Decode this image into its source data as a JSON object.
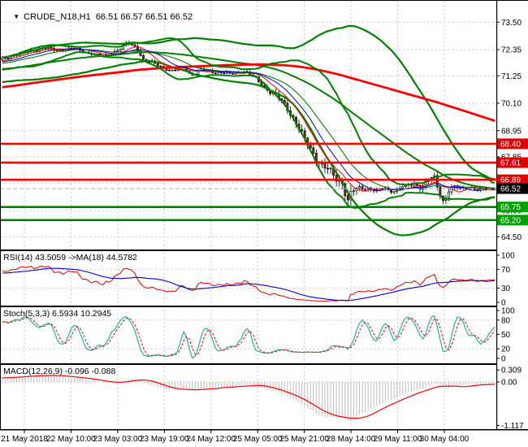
{
  "window": {
    "dropdown_icon": "▼",
    "title_symbol": "CRUDE_N18,H1",
    "title_ohlc": "66.51 66.57 66.51 66.52"
  },
  "colors": {
    "background": "#FFFFFF",
    "grid": "#C9C9C9",
    "bull_candle": "#FFFFFF",
    "bear_candle": "#9C231F",
    "wick": "#000000",
    "bollinger_green": "#008000",
    "ma_thin_red": "#FF0000",
    "ma_thin_blue": "#0000CC",
    "ma_thick_red": "#FF0000",
    "resistance_line": "#FF0000",
    "support_line": "#008000",
    "resistance_badge": "#DD0000",
    "support_badge": "#00A000",
    "last_price_badge": "#000000",
    "badge_text": "#FFFFFF",
    "rsi_line": "#E00000",
    "rsi_ma_line": "#0000CC",
    "stoch_k_line": "#20B2AA",
    "stoch_d_line": "#FF0000",
    "macd_histogram": "#BDBDBD",
    "macd_signal": "#FF0000",
    "last_price_line": "#B0B0B0",
    "axis_text": "#000000"
  },
  "chart_data": {
    "type": "candlestick",
    "symbol": "CRUDE_N18,H1",
    "timeframe": "H1",
    "ohlc_readout": {
      "open": 66.51,
      "high": 66.57,
      "low": 66.51,
      "close": 66.52
    },
    "price_axis_ticks": [
      "73.50",
      "72.35",
      "71.25",
      "70.10",
      "68.95",
      "67.85",
      "66.75",
      "65.60",
      "64.50"
    ],
    "price_axis_range": [
      64.0,
      73.85
    ],
    "time_axis_labels": [
      "21 May 2018",
      "22 May 10:00",
      "23 May 03:00",
      "23 May 19:00",
      "24 May 12:00",
      "25 May 05:00",
      "25 May 21:00",
      "28 May 14:00",
      "29 May 11:00",
      "30 May 04:00"
    ],
    "levels": {
      "resistance": [
        68.4,
        67.61,
        66.89
      ],
      "resistance_labels": [
        "68.40",
        "67.61",
        "66.89"
      ],
      "support": [
        65.75,
        65.2
      ],
      "support_labels": [
        "65.75",
        "65.20"
      ],
      "last_price": 66.52,
      "last_price_label": "66.52"
    },
    "series": {
      "candle_count": 172,
      "close_waypoints": [
        [
          0,
          71.95
        ],
        [
          14,
          72.1
        ],
        [
          34,
          72.28
        ],
        [
          52,
          72.42
        ],
        [
          68,
          72.33
        ],
        [
          88,
          72.4
        ],
        [
          108,
          72.22
        ],
        [
          126,
          72.05
        ],
        [
          142,
          72.3
        ],
        [
          158,
          72.6
        ],
        [
          168,
          72.42
        ],
        [
          176,
          71.88
        ],
        [
          192,
          71.72
        ],
        [
          212,
          71.42
        ],
        [
          226,
          71.62
        ],
        [
          234,
          71.28
        ],
        [
          248,
          71.5
        ],
        [
          264,
          71.42
        ],
        [
          282,
          71.32
        ],
        [
          300,
          71.45
        ],
        [
          314,
          71.12
        ],
        [
          328,
          70.7
        ],
        [
          342,
          70.3
        ],
        [
          354,
          69.85
        ],
        [
          364,
          69.25
        ],
        [
          374,
          68.55
        ],
        [
          384,
          68.05
        ],
        [
          394,
          67.55
        ],
        [
          404,
          67.25
        ],
        [
          414,
          66.9
        ],
        [
          421,
          66.8
        ],
        [
          427,
          65.98
        ],
        [
          432,
          66.38
        ],
        [
          440,
          66.52
        ],
        [
          452,
          66.55
        ],
        [
          462,
          66.42
        ],
        [
          472,
          66.55
        ],
        [
          482,
          66.4
        ],
        [
          492,
          66.58
        ],
        [
          502,
          66.65
        ],
        [
          510,
          66.75
        ],
        [
          518,
          66.55
        ],
        [
          526,
          66.9
        ],
        [
          534,
          66.95
        ],
        [
          540,
          66.35
        ],
        [
          545,
          65.98
        ],
        [
          551,
          66.45
        ],
        [
          558,
          66.58
        ],
        [
          568,
          66.5
        ],
        [
          578,
          66.62
        ],
        [
          588,
          66.42
        ],
        [
          598,
          66.5
        ],
        [
          610,
          66.52
        ]
      ],
      "volatility_waypoints": [
        [
          0,
          0.13
        ],
        [
          60,
          0.16
        ],
        [
          120,
          0.14
        ],
        [
          160,
          0.24
        ],
        [
          200,
          0.18
        ],
        [
          240,
          0.2
        ],
        [
          300,
          0.14
        ],
        [
          330,
          0.28
        ],
        [
          360,
          0.38
        ],
        [
          400,
          0.42
        ],
        [
          428,
          0.5
        ],
        [
          445,
          0.2
        ],
        [
          475,
          0.14
        ],
        [
          505,
          0.2
        ],
        [
          530,
          0.3
        ],
        [
          548,
          0.3
        ],
        [
          575,
          0.14
        ],
        [
          610,
          0.12
        ]
      ],
      "prehistory": {
        "bars": 170,
        "from": 69.3,
        "to": 71.9,
        "wiggle": 0.12
      }
    },
    "overlays": {
      "bollinger_fast_period": 20,
      "bollinger_slow_period": 55,
      "ma_thick_period": 150,
      "ma_fast_period": 8,
      "ma_medium_period": 13
    },
    "indicators": {
      "rsi": {
        "label": "RSI(14) 43.5059 ->MA(18) 44.5782",
        "period": 14,
        "value": 43.5059,
        "ma_period": 18,
        "ma_value": 44.5782,
        "scale_ticks": [
          "100",
          "70",
          "30",
          "0"
        ],
        "levels": [
          70,
          30
        ],
        "range": [
          0,
          100
        ]
      },
      "stochastic": {
        "label": "Stoch(5,3,3) 6.5934 10.2945",
        "k_value": 6.5934,
        "d_value": 10.2945,
        "scale_ticks": [
          "100",
          "80",
          "50",
          "20",
          "0"
        ],
        "levels": [
          80,
          20
        ],
        "range": [
          0,
          100
        ]
      },
      "macd": {
        "label": "MACD(12,26,9) -0.096 -0.088",
        "value": -0.096,
        "signal": -0.088,
        "scale_ticks": [
          "0.309",
          "0.00",
          "-1.117"
        ],
        "range": [
          -1.2,
          0.43
        ]
      }
    }
  }
}
